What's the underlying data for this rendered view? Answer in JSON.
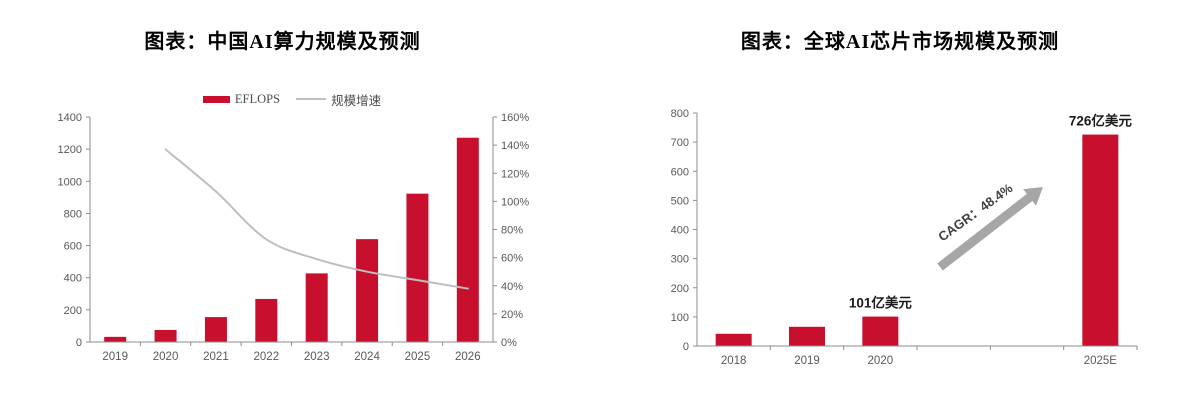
{
  "styles": {
    "background": "#FFFFFF",
    "bar_red": "#C8102E",
    "line_gray": "#BFBFBF",
    "arrow_gray": "#A6A6A6",
    "axis_gray": "#8C8C8C",
    "tick_text": "#595959",
    "title_color": "#000000",
    "data_label_color": "#1A1A1A"
  },
  "chart_data": [
    {
      "id": "china-ai-computing-power",
      "type": "bar",
      "title": "图表：中国AI算力规模及预测",
      "categories": [
        "2019",
        "2020",
        "2021",
        "2022",
        "2023",
        "2024",
        "2025",
        "2026"
      ],
      "series": [
        {
          "name": "EFLOPS",
          "type": "bar",
          "axis": "left",
          "color": "#C8102E",
          "values": [
            32,
            75,
            155,
            268,
            427,
            640,
            923,
            1271
          ]
        },
        {
          "name": "规模增速",
          "type": "line",
          "axis": "right",
          "color": "#BFBFBF",
          "values_pct": [
            null,
            137,
            107,
            73,
            59,
            50,
            44,
            38
          ]
        }
      ],
      "left_axis": {
        "min": 0,
        "max": 1400,
        "ticks": [
          "0",
          "200",
          "400",
          "600",
          "800",
          "1000",
          "1200",
          "1400"
        ]
      },
      "right_axis": {
        "min_pct": 0,
        "max_pct": 160,
        "ticks": [
          "0%",
          "20%",
          "40%",
          "60%",
          "80%",
          "100%",
          "120%",
          "140%",
          "160%"
        ]
      },
      "legend_position": "top",
      "grid": false
    },
    {
      "id": "global-ai-chip-market",
      "type": "bar",
      "title": "图表：全球AI芯片市场规模及预测",
      "categories": [
        "2018",
        "2019",
        "2020",
        "2025E"
      ],
      "values": [
        42,
        66,
        101,
        726
      ],
      "slot_index": [
        0,
        1,
        2,
        5
      ],
      "total_slots": 6,
      "data_labels": [
        "",
        "",
        "101亿美元",
        "726亿美元"
      ],
      "bar_color": "#C8102E",
      "y_axis": {
        "min": 0,
        "max": 800,
        "ticks": [
          "0",
          "100",
          "200",
          "300",
          "400",
          "500",
          "600",
          "700",
          "800"
        ]
      },
      "annotation": {
        "text": "CAGR：48.4%",
        "shape": "arrow",
        "color": "#A6A6A6"
      },
      "legend_position": "none",
      "grid": false
    }
  ]
}
